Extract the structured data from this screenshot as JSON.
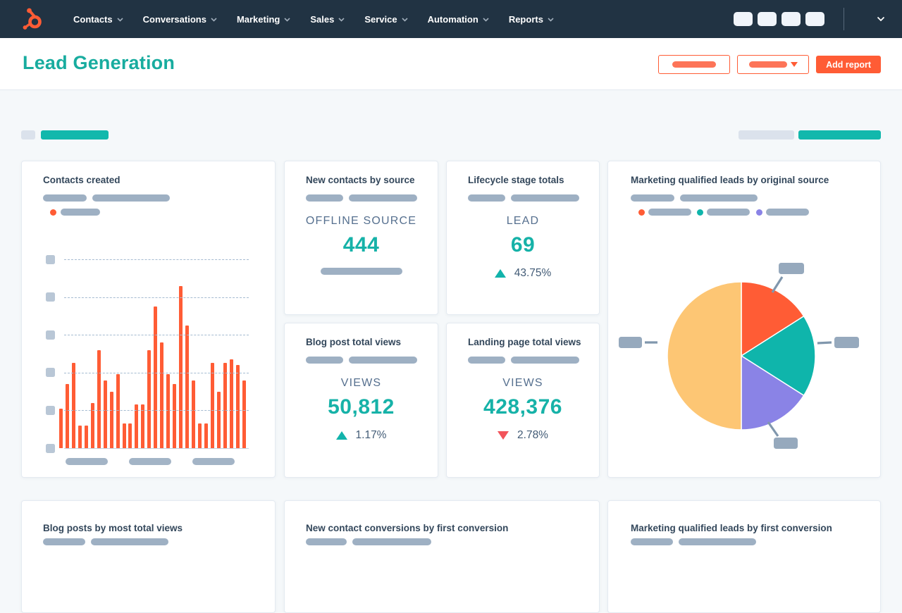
{
  "nav": {
    "items": [
      {
        "label": "Contacts"
      },
      {
        "label": "Conversations"
      },
      {
        "label": "Marketing"
      },
      {
        "label": "Sales"
      },
      {
        "label": "Service"
      },
      {
        "label": "Automation"
      },
      {
        "label": "Reports"
      }
    ],
    "icons": {
      "logo": "hubspot-sprocket",
      "menu_caret": "chevron-down",
      "account_caret": "chevron-down"
    }
  },
  "header": {
    "title": "Lead Generation",
    "add_report_label": "Add report"
  },
  "colors": {
    "nav_bg": "#213343",
    "accent_orange": "#ff5c35",
    "teal": "#12b3ab",
    "heading_teal": "#18ac9f",
    "value_teal": "#16b2a8",
    "down_red": "#f2545b",
    "title_navy": "#33475b",
    "placeholder_gray": "#9eb0c3"
  },
  "cards": {
    "contacts_created": {
      "title": "Contacts created",
      "chart_data": {
        "type": "bar",
        "title": "Contacts created",
        "values": [
          21,
          34,
          45,
          12,
          12,
          24,
          52,
          36,
          30,
          39,
          13,
          13,
          23,
          23,
          52,
          75,
          56,
          39,
          34,
          86,
          65,
          36,
          13,
          13,
          45,
          30,
          45,
          47,
          44,
          36
        ],
        "ylim": [
          0,
          100
        ],
        "y_gridlines": 6,
        "x_label_placeholders": 3,
        "bar_color": "#ff5c35",
        "legend": [
          {
            "name": "series-placeholder",
            "color": "#ff5c35"
          }
        ],
        "note_axis_labels": "redacted placeholder bars"
      }
    },
    "new_contacts_by_source": {
      "title": "New contacts by source",
      "metric_label": "OFFLINE SOURCE",
      "value": "444"
    },
    "lifecycle_stage_totals": {
      "title": "Lifecycle stage totals",
      "metric_label": "LEAD",
      "value": "69",
      "delta": "43.75%",
      "delta_direction": "up"
    },
    "mql_by_original_source": {
      "title": "Marketing qualified leads by original source",
      "chart_data": {
        "type": "pie",
        "title": "Marketing qualified leads by original source",
        "slices": [
          {
            "name": "slice-1",
            "pct": 16,
            "color": "#ff5c35"
          },
          {
            "name": "slice-2",
            "pct": 18,
            "color": "#0fb5ab"
          },
          {
            "name": "slice-3",
            "pct": 16,
            "color": "#8a83e6"
          },
          {
            "name": "slice-4",
            "pct": 50,
            "color": "#fdc674"
          }
        ],
        "start_at": "12-o-clock, clockwise",
        "legend": [
          {
            "name": "legend-1",
            "color": "#ff5c35"
          },
          {
            "name": "legend-2",
            "color": "#0fb5ab"
          },
          {
            "name": "legend-3",
            "color": "#8a83e6"
          }
        ],
        "callout_labels": "redacted placeholder tags (top, right, bottom, left)"
      }
    },
    "blog_post_total_views": {
      "title": "Blog post total views",
      "metric_label": "VIEWS",
      "value": "50,812",
      "delta": "1.17%",
      "delta_direction": "up"
    },
    "landing_page_total_views": {
      "title": "Landing page total views",
      "metric_label": "VIEWS",
      "value": "428,376",
      "delta": "2.78%",
      "delta_direction": "down"
    },
    "blog_posts_by_most_total_views": {
      "title": "Blog posts by most total views"
    },
    "new_contact_conversions_by_first_conversion": {
      "title": "New contact conversions by first conversion"
    },
    "mql_by_first_conversion": {
      "title": "Marketing qualified leads by first conversion"
    }
  }
}
